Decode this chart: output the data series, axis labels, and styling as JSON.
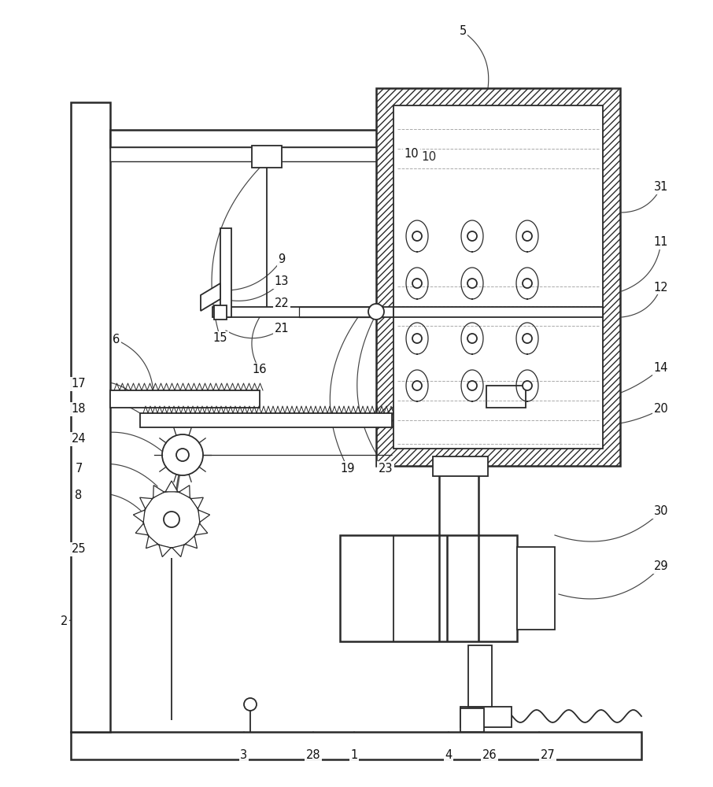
{
  "bg": "#ffffff",
  "lc": "#2a2a2a",
  "gray": "#888888",
  "lw_main": 1.8,
  "lw_med": 1.3,
  "lw_thin": 0.9,
  "fig_w": 9.06,
  "fig_h": 10.0,
  "dpi": 100
}
